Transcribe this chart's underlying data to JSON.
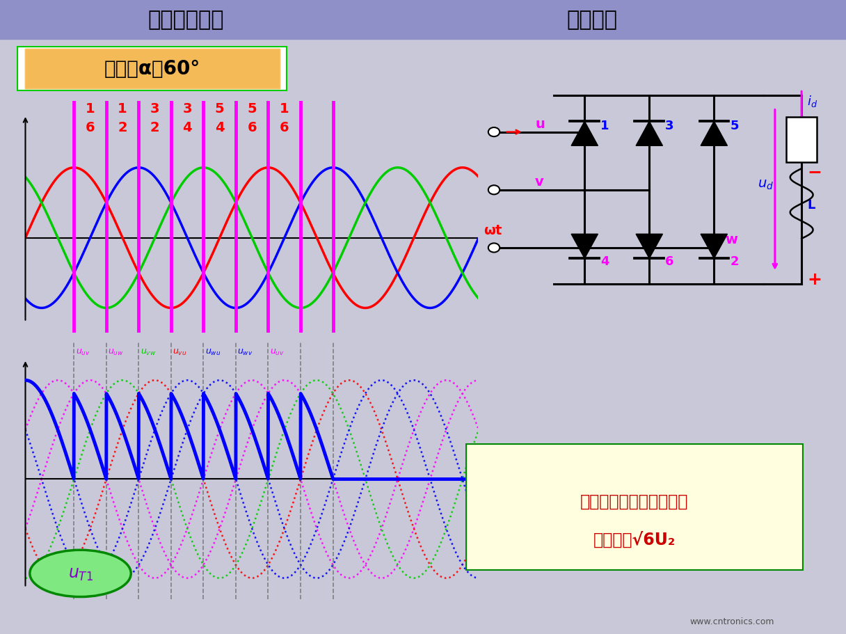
{
  "title_left": "三相全控桥式",
  "title_right": "工作原理",
  "bg_color": "#c8c8d8",
  "header_color": "#9090c8",
  "control_angle_text": "控制角α＝60°",
  "wave_colors": [
    "#ff0000",
    "#0000ff",
    "#00cc00"
  ],
  "magenta": "#ff00ff",
  "alpha_deg": 60,
  "thyristor_pairs": [
    [
      "1",
      "6"
    ],
    [
      "1",
      "2"
    ],
    [
      "3",
      "2"
    ],
    [
      "3",
      "4"
    ],
    [
      "5",
      "4"
    ],
    [
      "5",
      "6"
    ],
    [
      "1",
      "6"
    ]
  ],
  "annotation_text_line1": "晶闸管承受的最大正、反",
  "annotation_text_line2": "向压降为√6U₂",
  "annotation_box_bg": "#ffffe0",
  "annotation_box_border": "#008000",
  "omega_t": "ωt",
  "site_text": "www.cntronics.com",
  "uT1_text": "u_T1"
}
